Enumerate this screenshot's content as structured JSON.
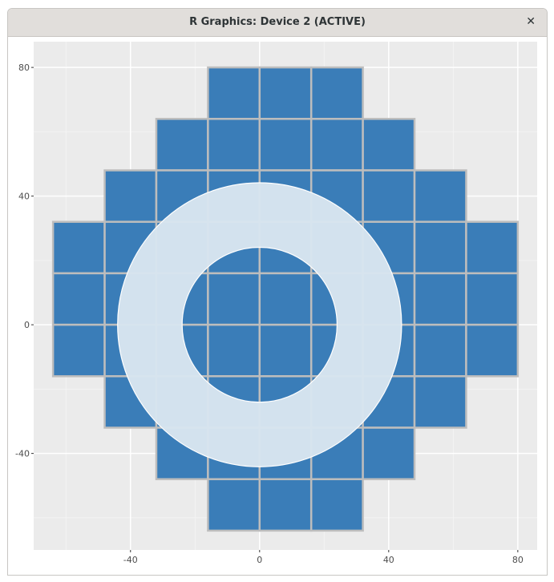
{
  "window": {
    "title": "R Graphics: Device 2 (ACTIVE)",
    "close_icon": "close-icon"
  },
  "chart_data": {
    "type": "heatmap",
    "title": "",
    "xlabel": "",
    "ylabel": "",
    "xlim": [
      -70,
      86
    ],
    "ylim": [
      -70,
      88
    ],
    "x_ticks": [
      -40,
      0,
      40,
      80
    ],
    "y_ticks": [
      -40,
      0,
      40,
      80
    ],
    "x_tick_labels": [
      "-40",
      "0",
      "40",
      "80"
    ],
    "y_tick_labels": [
      "-40",
      "0",
      "40",
      "80"
    ],
    "grid": true,
    "tile_size": 16,
    "tile_fill": "#3a7db8",
    "tile_border": "#bdbdbd",
    "tile_rows": [
      {
        "y": 72,
        "x_from": -8,
        "x_to": 24
      },
      {
        "y": 56,
        "x_from": -24,
        "x_to": 40
      },
      {
        "y": 40,
        "x_from": -40,
        "x_to": 56
      },
      {
        "y": 24,
        "x_from": -56,
        "x_to": 72
      },
      {
        "y": 8,
        "x_from": -56,
        "x_to": 72
      },
      {
        "y": -8,
        "x_from": -56,
        "x_to": 72
      },
      {
        "y": -24,
        "x_from": -40,
        "x_to": 56
      },
      {
        "y": -40,
        "x_from": -24,
        "x_to": 40
      },
      {
        "y": -56,
        "x_from": -8,
        "x_to": 24
      }
    ],
    "ring": {
      "center": [
        0,
        0
      ],
      "inner_radius": 24,
      "outer_radius": 44,
      "fill": "#d8e5f0",
      "border": "#ffffff"
    },
    "panel_background": "#ebebeb"
  }
}
